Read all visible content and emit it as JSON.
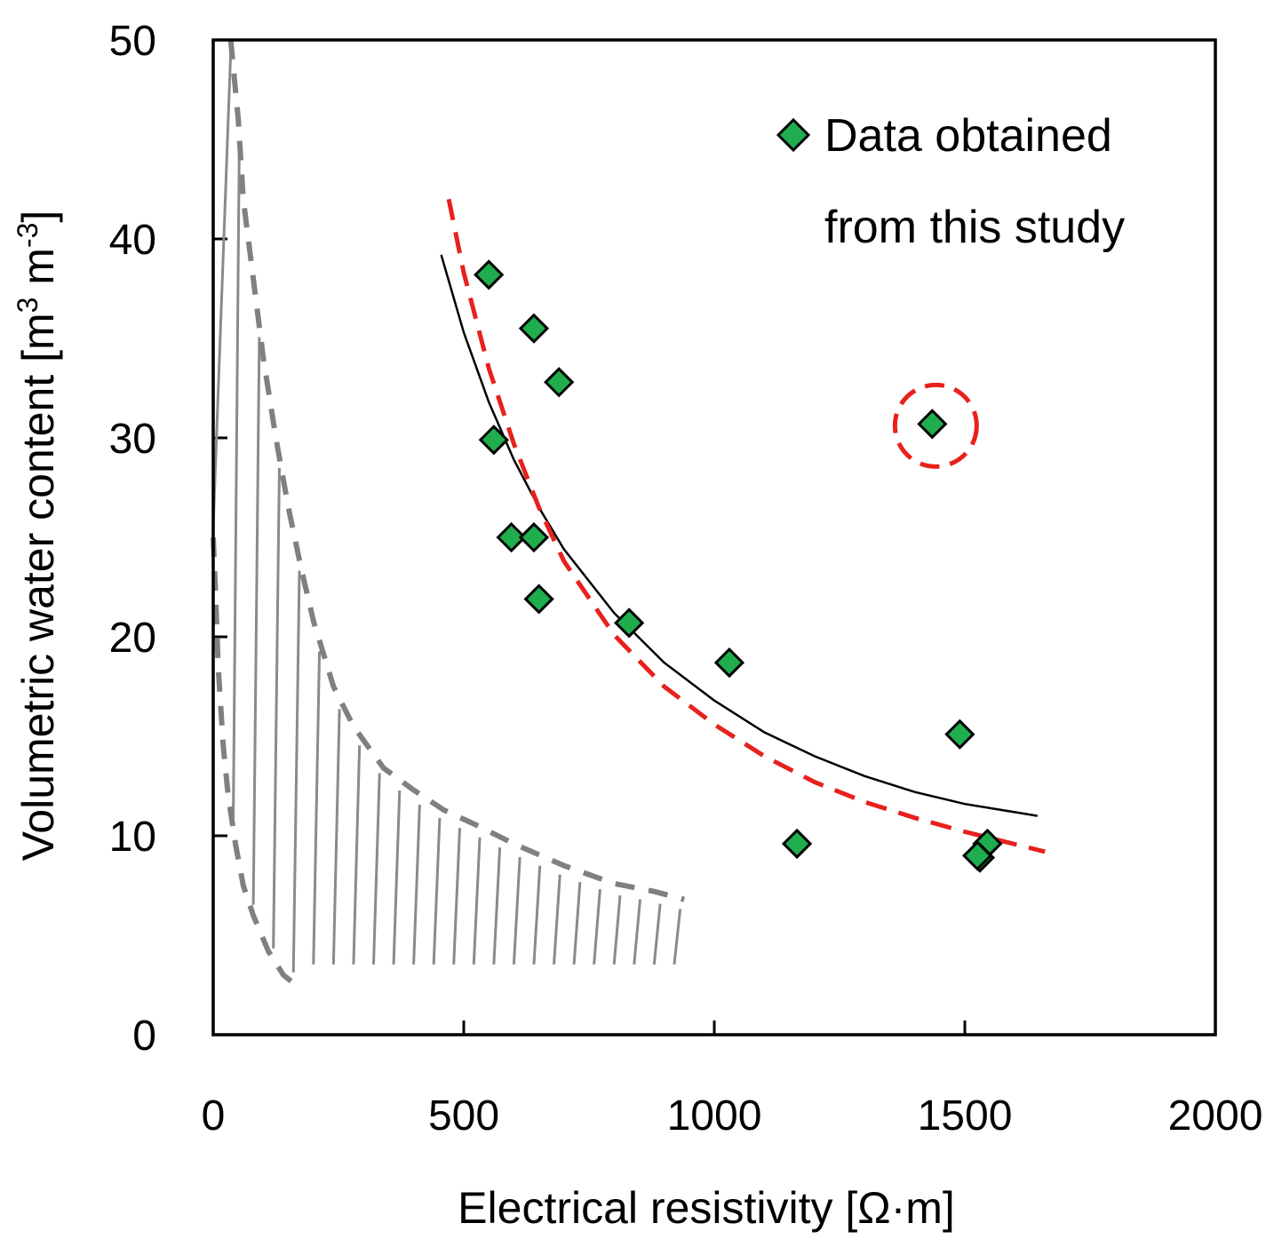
{
  "chart_data": {
    "type": "scatter",
    "xlabel": "Electrical resistivity [Ω·m]",
    "ylabel_main": "Volumetric water content [m",
    "ylabel_sup1": "3",
    "ylabel_mid": " m",
    "ylabel_sup2": "-3",
    "ylabel_end": "]",
    "xlim": [
      0,
      2000
    ],
    "ylim": [
      0,
      50
    ],
    "x_ticks": [
      0,
      500,
      1000,
      1500,
      2000
    ],
    "y_ticks": [
      0,
      10,
      20,
      30,
      40,
      50
    ],
    "legend": {
      "line1": "Data obtained",
      "line2": "from this study",
      "placement": "top-right"
    },
    "series": [
      {
        "name": "Data obtained from this study",
        "marker": "diamond",
        "color": "#1fad4e",
        "points": [
          {
            "x": 550,
            "y": 38.2
          },
          {
            "x": 640,
            "y": 35.5
          },
          {
            "x": 690,
            "y": 32.8
          },
          {
            "x": 560,
            "y": 29.9
          },
          {
            "x": 595,
            "y": 25.0
          },
          {
            "x": 640,
            "y": 25.0
          },
          {
            "x": 650,
            "y": 21.9
          },
          {
            "x": 830,
            "y": 20.7
          },
          {
            "x": 1030,
            "y": 18.7
          },
          {
            "x": 1165,
            "y": 9.6
          },
          {
            "x": 1435,
            "y": 30.7
          },
          {
            "x": 1490,
            "y": 15.1
          },
          {
            "x": 1545,
            "y": 9.6
          },
          {
            "x": 1530,
            "y": 8.9
          },
          {
            "x": 1525,
            "y": 9.0
          }
        ]
      },
      {
        "name": "Fitted curve (solid)",
        "style": "solid",
        "color": "#000000",
        "x": [
          455,
          500,
          550,
          600,
          650,
          700,
          800,
          900,
          1000,
          1100,
          1200,
          1300,
          1400,
          1500,
          1645
        ],
        "y": [
          39.2,
          35.3,
          31.8,
          28.9,
          26.5,
          24.4,
          21.2,
          18.7,
          16.8,
          15.2,
          14.0,
          13.0,
          12.2,
          11.6,
          11.0
        ]
      },
      {
        "name": "Fitted curve (dashed)",
        "style": "dashed",
        "color": "#e8211d",
        "x": [
          470,
          500,
          550,
          600,
          650,
          700,
          800,
          900,
          1000,
          1100,
          1200,
          1300,
          1400,
          1500,
          1660
        ],
        "y": [
          42.0,
          38.3,
          33.5,
          29.7,
          26.5,
          23.8,
          20.1,
          17.5,
          15.6,
          14.0,
          12.7,
          11.7,
          10.9,
          10.2,
          9.2
        ]
      },
      {
        "name": "Hatched region upper bound (dashed)",
        "style": "dashed",
        "color": "#808080",
        "x": [
          35,
          50,
          60,
          80,
          100,
          125,
          150,
          175,
          200,
          240,
          280,
          340,
          400,
          460,
          520,
          600,
          700,
          800,
          880,
          940
        ],
        "y": [
          50,
          46,
          42,
          38,
          34,
          30,
          26.5,
          23.5,
          20.8,
          17.5,
          15.5,
          13.4,
          12.3,
          11.3,
          10.6,
          9.6,
          8.5,
          7.6,
          7.2,
          6.8
        ]
      },
      {
        "name": "Hatched region lower bound (dashed)",
        "style": "dashed",
        "color": "#808080",
        "x": [
          0,
          5,
          10,
          20,
          30,
          45,
          60,
          80,
          110,
          140,
          160
        ],
        "y": [
          25,
          22,
          18.5,
          14.5,
          12,
          9.5,
          7.5,
          6,
          4.2,
          3,
          2.6
        ]
      }
    ],
    "annotations": [
      {
        "type": "dashed-circle",
        "color": "#e8211d",
        "cx": 1435,
        "cy": 30.7,
        "note": "outlier highlighted"
      }
    ]
  }
}
